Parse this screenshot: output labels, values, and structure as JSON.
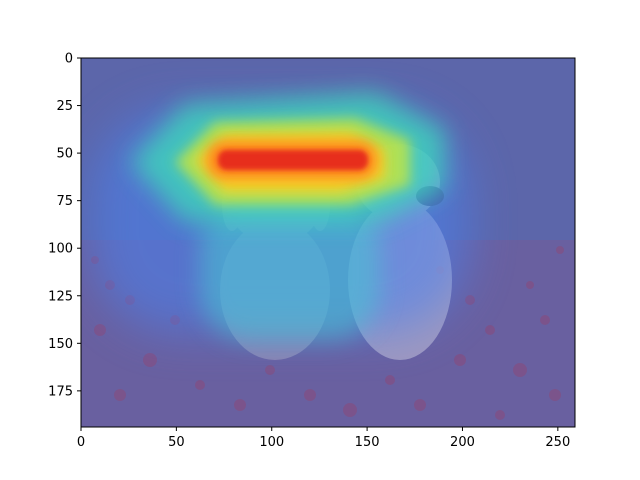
{
  "chart_data": {
    "type": "heatmap",
    "title": "",
    "xlabel": "",
    "ylabel": "",
    "xlim": [
      0,
      259
    ],
    "ylim": [
      194,
      0
    ],
    "x_ticks": [
      0,
      50,
      100,
      150,
      200,
      250
    ],
    "y_ticks": [
      0,
      25,
      50,
      75,
      100,
      125,
      150,
      175
    ],
    "grid": false,
    "legend": "none",
    "colormap": "jet",
    "overlay_of": "photograph of two dogs sitting among red flowers",
    "hotspots": [
      {
        "x": 108,
        "y": 54,
        "level": 1.0
      },
      {
        "x": 100,
        "y": 95,
        "level": 0.55
      }
    ]
  },
  "colors": {
    "background_tint": "#5a64a8",
    "hot": "#e62a1e",
    "warm": "#ffd21e",
    "mid": "#3cdcb4",
    "cool": "#3c78ff"
  }
}
